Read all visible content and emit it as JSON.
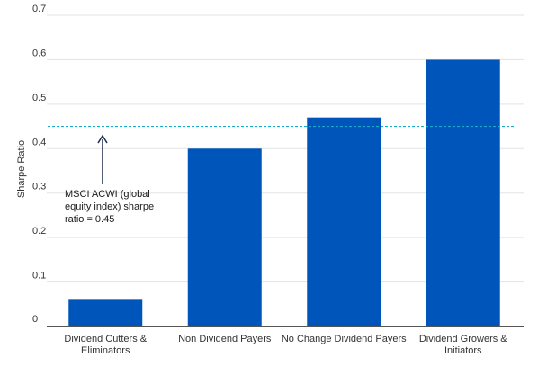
{
  "chart_data": {
    "type": "bar",
    "title": "",
    "xlabel": "",
    "ylabel": "Sharpe Ratio",
    "ylim": [
      0,
      0.7
    ],
    "yticks": [
      0,
      0.1,
      0.2,
      0.3,
      0.4,
      0.5,
      0.6,
      0.7
    ],
    "ytick_labels": [
      "0",
      "0.1",
      "0.2",
      "0.3",
      "0.4",
      "0.5",
      "0.6",
      "0.7"
    ],
    "grid": true,
    "categories": [
      "Dividend Cutters & Eliminators",
      "Non Dividend Payers",
      "No Change Dividend Payers",
      "Dividend Growers & Initiators"
    ],
    "category_label_lines": [
      [
        "Dividend Cutters &",
        "Eliminators"
      ],
      [
        "Non Dividend Payers"
      ],
      [
        "No Change Dividend Payers"
      ],
      [
        "Dividend Growers &",
        "Initiators"
      ]
    ],
    "values": [
      0.06,
      0.4,
      0.47,
      0.6
    ],
    "bar_color": "#0055bb",
    "reference_line": {
      "value": 0.45,
      "color": "#1aa9c9",
      "style": "dashed"
    },
    "annotation": {
      "lines": [
        "MSCI ACWI (global",
        "equity index) sharpe",
        "ratio = 0.45"
      ],
      "arrow_color": "#1a2a4a"
    }
  }
}
